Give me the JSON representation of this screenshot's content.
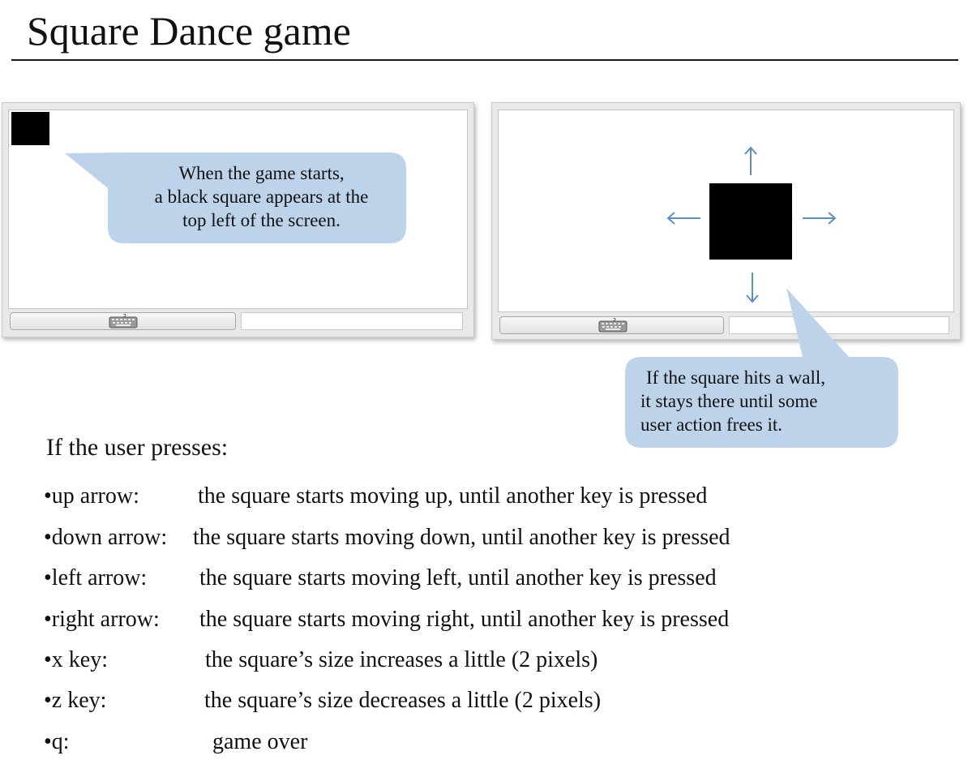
{
  "slide": {
    "title": "Square Dance game"
  },
  "callouts": {
    "start": [
      "When the game starts,",
      "a black square appears at the",
      "top left of the screen."
    ],
    "wall": [
      "If the square hits a wall,",
      "it stays there until some",
      "user action frees it."
    ]
  },
  "instructions": {
    "intro": "If the user presses:",
    "rules": [
      {
        "key": "•up arrow:",
        "desc": "the square starts moving up, until another key is pressed"
      },
      {
        "key": "•down arrow:",
        "desc": "the square starts moving down, until another key is pressed"
      },
      {
        "key": "•left arrow:",
        "desc": "the square starts moving left, until another key is pressed"
      },
      {
        "key": "•right arrow:",
        "desc": "the square starts moving right, until another key is pressed"
      },
      {
        "key": "•x key:",
        "desc": "the square’s size increases a little (2 pixels)"
      },
      {
        "key": "•z key:",
        "desc": "the square’s size decreases a little (2 pixels)"
      },
      {
        "key": "•q:",
        "desc": "game over"
      }
    ]
  },
  "icons": {
    "status_bar": "keyboard-icon",
    "directions": [
      "arrow-up-icon",
      "arrow-down-icon",
      "arrow-left-icon",
      "arrow-right-icon"
    ]
  },
  "colors": {
    "callout_fill": "#bcd3e9",
    "arrow": "#5b8fc7",
    "square": "#000000"
  }
}
